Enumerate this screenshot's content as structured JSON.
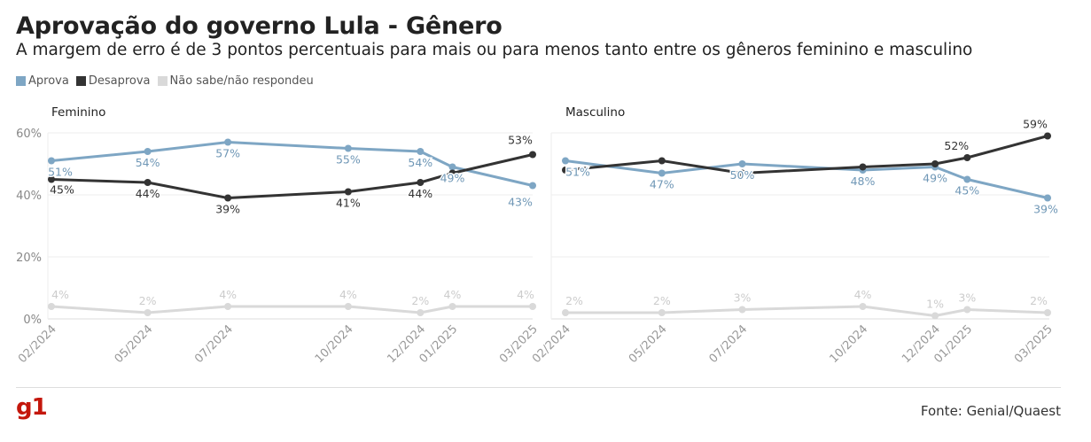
{
  "title": "Aprovação do governo Lula - Gênero",
  "subtitle": "A margem de erro é de 3 pontos percentuais para mais ou para menos tanto entre os gêneros feminino e masculino",
  "legend": [
    {
      "label": "Aprova",
      "color": "#7ea6c4"
    },
    {
      "label": "Desaprova",
      "color": "#333333"
    },
    {
      "label": "Não sabe/não respondeu",
      "color": "#d9d9d9"
    }
  ],
  "source": "Fonte: Genial/Quaest",
  "logo": "g1",
  "chart_data": {
    "type": "line",
    "x": [
      "02/2024",
      "05/2024",
      "07/2024",
      "10/2024",
      "12/2024",
      "01/2025",
      "03/2025"
    ],
    "yticks": [
      "60%",
      "40%",
      "20%",
      "0%"
    ],
    "ylim": [
      0,
      60
    ],
    "grid": true,
    "legend_position": "top-left",
    "panels": [
      {
        "name": "Feminino",
        "series": [
          {
            "name": "Aprova",
            "color": "#7ea6c4",
            "values": [
              51,
              54,
              57,
              55,
              54,
              49,
              43
            ]
          },
          {
            "name": "Desaprova",
            "color": "#333333",
            "values": [
              45,
              44,
              39,
              41,
              44,
              47,
              53
            ]
          },
          {
            "name": "Não sabe/não respondeu",
            "color": "#d9d9d9",
            "values": [
              4,
              2,
              4,
              4,
              2,
              4,
              4
            ]
          }
        ]
      },
      {
        "name": "Masculino",
        "series": [
          {
            "name": "Aprova",
            "color": "#7ea6c4",
            "values": [
              51,
              47,
              50,
              48,
              49,
              45,
              39
            ]
          },
          {
            "name": "Desaprova",
            "color": "#333333",
            "values": [
              48,
              51,
              47,
              49,
              50,
              52,
              59
            ]
          },
          {
            "name": "Não sabe/não respondeu",
            "color": "#d9d9d9",
            "values": [
              2,
              2,
              3,
              4,
              1,
              3,
              2
            ]
          }
        ]
      }
    ]
  }
}
